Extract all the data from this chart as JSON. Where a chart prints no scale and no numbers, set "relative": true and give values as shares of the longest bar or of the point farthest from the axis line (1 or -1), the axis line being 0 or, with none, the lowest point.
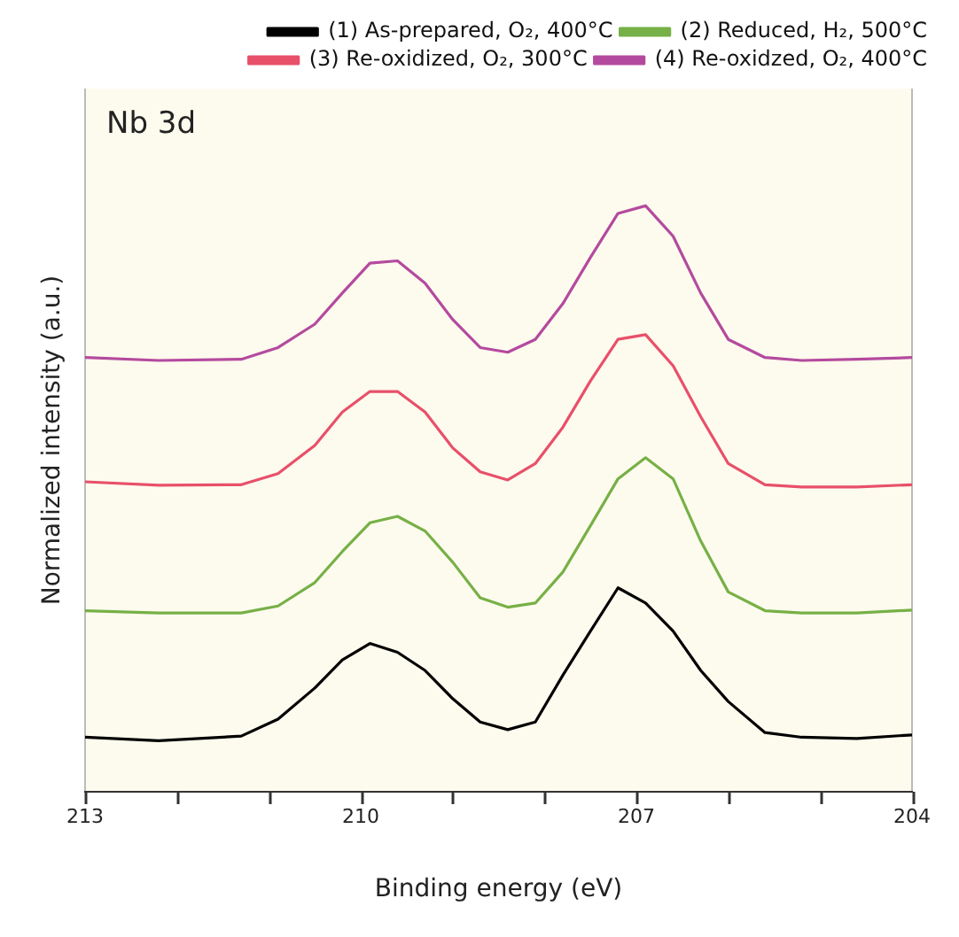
{
  "chart_data": {
    "type": "line",
    "xlabel": "Binding energy (eV)",
    "ylabel": "Normalized intensity (a.u.)",
    "annotations": [
      "Nb 3d"
    ],
    "relative": true,
    "legend": "top right",
    "grid": false,
    "tick_labels": "x",
    "marker": "none",
    "line_style": "solid",
    "xlim": [
      213,
      204
    ],
    "xticks": [
      213,
      {
        "value": 212,
        "label": null
      },
      {
        "value": 211,
        "label": null
      },
      210,
      {
        "value": 209,
        "label": null
      },
      {
        "value": 208,
        "label": null
      },
      207,
      {
        "value": 206,
        "label": null
      },
      {
        "value": 205,
        "label": null
      },
      204
    ],
    "x": [
      213,
      212.2,
      211.3,
      210.9,
      210.5,
      210.2,
      209.9,
      209.6,
      209.3,
      209.0,
      208.7,
      208.4,
      208.1,
      207.8,
      207.5,
      207.2,
      206.9,
      206.6,
      206.3,
      206.0,
      205.6,
      205.2,
      204.6,
      204
    ],
    "series": [
      {
        "name": "(1) As-prepared, O₂, 400°C",
        "color": "#000000",
        "values": [
          0.093,
          0.087,
          0.095,
          0.124,
          0.177,
          0.225,
          0.253,
          0.238,
          0.207,
          0.159,
          0.119,
          0.106,
          0.119,
          0.199,
          0.274,
          0.348,
          0.322,
          0.274,
          0.207,
          0.154,
          0.101,
          0.093,
          0.091,
          0.097
        ]
      },
      {
        "name": "(2) Reduced, H₂, 500°C",
        "color": "#77b046",
        "values": [
          0.309,
          0.305,
          0.305,
          0.317,
          0.357,
          0.41,
          0.459,
          0.47,
          0.445,
          0.392,
          0.331,
          0.315,
          0.322,
          0.375,
          0.454,
          0.534,
          0.57,
          0.534,
          0.428,
          0.341,
          0.309,
          0.305,
          0.305,
          0.31
        ]
      },
      {
        "name": "(3) Re-oxidized, O₂, 300°C",
        "color": "#e8506a",
        "values": [
          0.529,
          0.523,
          0.524,
          0.543,
          0.591,
          0.648,
          0.683,
          0.683,
          0.648,
          0.587,
          0.546,
          0.532,
          0.56,
          0.622,
          0.701,
          0.772,
          0.78,
          0.727,
          0.64,
          0.56,
          0.524,
          0.52,
          0.52,
          0.524
        ]
      },
      {
        "name": "(4) Re-oxidzed, O₂, 400°C",
        "color": "#b44a9e",
        "values": [
          0.741,
          0.736,
          0.738,
          0.758,
          0.798,
          0.851,
          0.902,
          0.906,
          0.868,
          0.806,
          0.758,
          0.75,
          0.772,
          0.833,
          0.912,
          0.987,
          1,
          0.948,
          0.851,
          0.772,
          0.741,
          0.736,
          0.738,
          0.741
        ]
      }
    ]
  }
}
